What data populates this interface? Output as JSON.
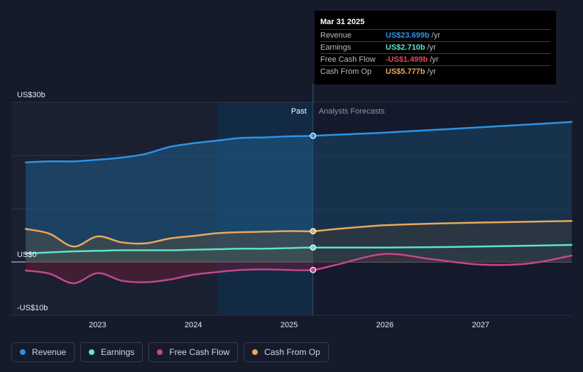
{
  "chart_data": {
    "type": "area",
    "ylim": [
      -10,
      30
    ],
    "xlim": [
      2022.1,
      2027.95
    ],
    "y_ticks": [
      {
        "value": 30,
        "label": "US$30b"
      },
      {
        "value": 0,
        "label": "US$0"
      },
      {
        "value": -10,
        "label": "-US$10b"
      }
    ],
    "x_ticks": [
      {
        "value": 2023,
        "label": "2023"
      },
      {
        "value": 2024,
        "label": "2024"
      },
      {
        "value": 2025,
        "label": "2025"
      },
      {
        "value": 2026,
        "label": "2026"
      },
      {
        "value": 2027,
        "label": "2027"
      }
    ],
    "past_label": "Past",
    "forecast_label": "Analysts Forecasts",
    "divider_x": 2025.25,
    "dark_band_start": 2024.25,
    "series": [
      {
        "name": "Revenue",
        "color": "#2e93e6",
        "x": [
          2022.25,
          2022.5,
          2022.75,
          2023.0,
          2023.25,
          2023.5,
          2023.75,
          2024.0,
          2024.25,
          2024.5,
          2024.75,
          2025.0,
          2025.25,
          2026.0,
          2027.0,
          2027.95
        ],
        "values": [
          18.7,
          18.9,
          18.9,
          19.2,
          19.6,
          20.3,
          21.6,
          22.3,
          22.8,
          23.3,
          23.4,
          23.6,
          23.699,
          24.3,
          25.3,
          26.3
        ]
      },
      {
        "name": "Earnings",
        "color": "#5ee3c8",
        "x": [
          2022.25,
          2022.5,
          2022.75,
          2023.0,
          2023.25,
          2023.5,
          2023.75,
          2024.0,
          2024.25,
          2024.5,
          2024.75,
          2025.0,
          2025.25,
          2026.0,
          2027.0,
          2027.95
        ],
        "values": [
          1.6,
          1.8,
          2.0,
          2.1,
          2.2,
          2.2,
          2.2,
          2.3,
          2.4,
          2.5,
          2.5,
          2.6,
          2.71,
          2.7,
          2.9,
          3.2
        ]
      },
      {
        "name": "Free Cash Flow",
        "color": "#c1478f",
        "x": [
          2022.25,
          2022.5,
          2022.75,
          2023.0,
          2023.25,
          2023.5,
          2023.75,
          2024.0,
          2024.25,
          2024.5,
          2024.75,
          2025.0,
          2025.25,
          2025.5,
          2026.0,
          2026.5,
          2027.0,
          2027.5,
          2027.95
        ],
        "values": [
          -1.6,
          -2.2,
          -4.0,
          -2.1,
          -3.5,
          -3.8,
          -3.3,
          -2.4,
          -1.9,
          -1.5,
          -1.4,
          -1.5,
          -1.499,
          -0.5,
          1.5,
          0.5,
          -0.5,
          -0.3,
          1.2
        ]
      },
      {
        "name": "Cash From Op",
        "color": "#e9a85c",
        "x": [
          2022.25,
          2022.5,
          2022.75,
          2023.0,
          2023.25,
          2023.5,
          2023.75,
          2024.0,
          2024.25,
          2024.5,
          2024.75,
          2025.0,
          2025.25,
          2025.5,
          2026.0,
          2026.5,
          2027.0,
          2027.95
        ],
        "values": [
          6.2,
          5.3,
          2.9,
          4.8,
          3.7,
          3.5,
          4.4,
          4.9,
          5.4,
          5.6,
          5.7,
          5.8,
          5.777,
          6.2,
          6.9,
          7.2,
          7.4,
          7.7
        ]
      }
    ],
    "highlight_x": 2025.25
  },
  "tooltip": {
    "date": "Mar 31 2025",
    "rows": [
      {
        "label": "Revenue",
        "value": "US$23.699b",
        "unit": "/yr",
        "color": "#2e93e6"
      },
      {
        "label": "Earnings",
        "value": "US$2.710b",
        "unit": "/yr",
        "color": "#5ee3c8"
      },
      {
        "label": "Free Cash Flow",
        "value": "-US$1.499b",
        "unit": "/yr",
        "color": "#e5484d"
      },
      {
        "label": "Cash From Op",
        "value": "US$5.777b",
        "unit": "/yr",
        "color": "#e9a85c"
      }
    ]
  },
  "legend": [
    {
      "label": "Revenue",
      "color": "#2e93e6"
    },
    {
      "label": "Earnings",
      "color": "#5ee3c8"
    },
    {
      "label": "Free Cash Flow",
      "color": "#c1478f"
    },
    {
      "label": "Cash From Op",
      "color": "#e9a85c"
    }
  ]
}
